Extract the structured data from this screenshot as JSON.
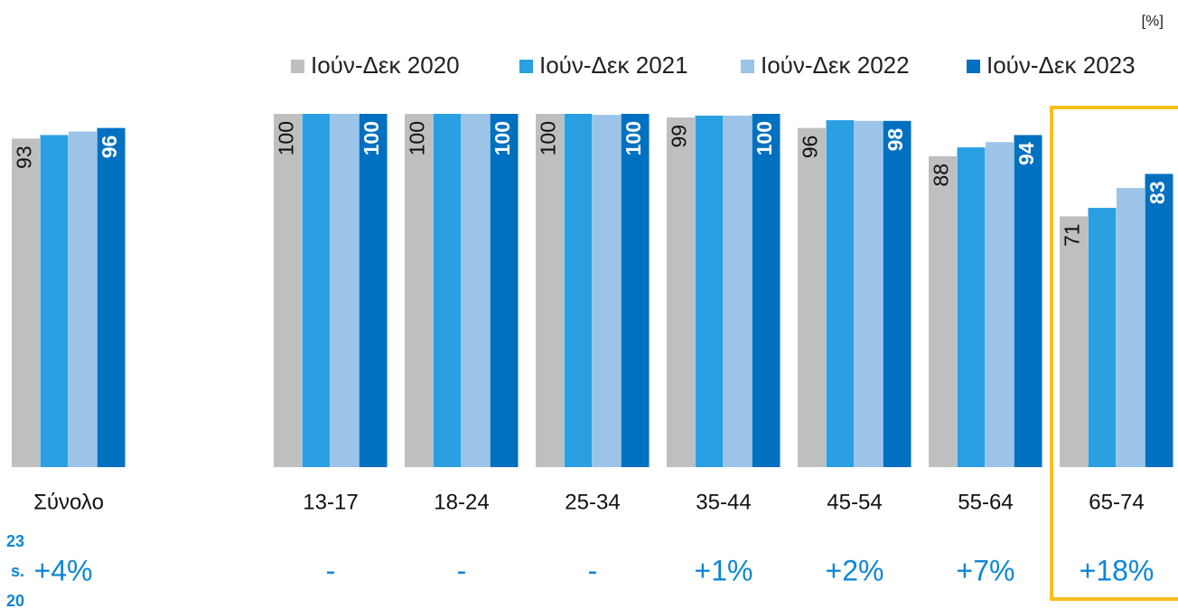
{
  "chart_data": {
    "type": "bar",
    "unit": "[%]",
    "categories": [
      "Σύνολο",
      "13-17",
      "18-24",
      "25-34",
      "35-44",
      "45-54",
      "55-64",
      "65-74"
    ],
    "series": [
      {
        "name": "Ιούν-Δεκ 2020",
        "color": "#bfbfbf",
        "label_style": "normal",
        "values": [
          93,
          100,
          100,
          100,
          99,
          96,
          88,
          71
        ]
      },
      {
        "name": "Ιούν-Δεκ 2021",
        "color": "#2a9fe2",
        "label_style": null,
        "values": [
          94,
          100,
          100,
          100,
          99.5,
          98.2,
          90.5,
          73.4
        ]
      },
      {
        "name": "Ιούν-Δεκ 2022",
        "color": "#9cc3e8",
        "label_style": null,
        "values": [
          95,
          100,
          100,
          99.7,
          99.5,
          98,
          92,
          79
        ]
      },
      {
        "name": "Ιούν-Δεκ 2023",
        "color": "#0070c0",
        "label_style": "bold",
        "values": [
          96,
          100,
          100,
          100,
          100,
          98,
          94,
          83
        ]
      }
    ],
    "changes_label": [
      "23",
      "s.",
      "20"
    ],
    "changes": [
      "+4%",
      "-",
      "-",
      "-",
      "+1%",
      "+2%",
      "+7%",
      "+18%"
    ],
    "highlight_category": "65-74",
    "highlight_color": "#f9bf1e",
    "change_color": "#0b86d6",
    "ylim": [
      0,
      100
    ]
  }
}
